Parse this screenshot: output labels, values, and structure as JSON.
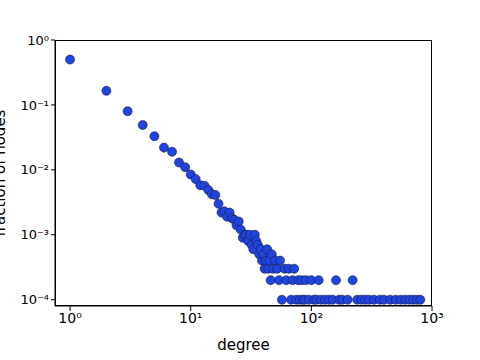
{
  "chart_data": {
    "type": "scatter",
    "x_label": "degree",
    "y_label": "fraction of nodes",
    "log": true,
    "grid": false,
    "color": "#1f45e0",
    "marker": "circle",
    "xlim": [
      0.75,
      1000
    ],
    "ylim": [
      8e-05,
      1
    ],
    "xticks": [
      {
        "value": 1,
        "label": "10⁰"
      },
      {
        "value": 10,
        "label": "10¹"
      },
      {
        "value": 100,
        "label": "10²"
      },
      {
        "value": 1000,
        "label": "10³"
      }
    ],
    "yticks": [
      {
        "value": 0.0001,
        "label": "10⁻⁴"
      },
      {
        "value": 0.001,
        "label": "10⁻³"
      },
      {
        "value": 0.01,
        "label": "10⁻²"
      },
      {
        "value": 0.1,
        "label": "10⁻¹"
      },
      {
        "value": 1,
        "label": "10⁰"
      }
    ],
    "x": [
      1,
      2,
      3,
      4,
      5,
      6,
      7,
      8,
      9,
      10,
      11,
      12,
      13,
      14,
      15,
      16,
      17,
      18,
      19,
      20,
      21,
      22,
      23,
      24,
      25,
      26,
      27,
      28,
      29,
      30,
      31,
      32,
      33,
      34,
      35,
      36,
      37,
      38,
      39,
      40,
      41,
      42,
      43,
      44,
      45,
      46,
      47,
      48,
      50,
      52,
      54,
      55,
      57,
      60,
      62,
      65,
      68,
      70,
      72,
      75,
      78,
      80,
      83,
      85,
      88,
      90,
      95,
      100,
      105,
      110,
      115,
      120,
      130,
      140,
      150,
      160,
      170,
      180,
      200,
      220,
      240,
      260,
      280,
      300,
      330,
      370,
      400,
      450,
      500,
      550,
      600,
      650,
      700,
      750,
      800
    ],
    "values": [
      0.5,
      0.165,
      0.08,
      0.049,
      0.033,
      0.022,
      0.019,
      0.013,
      0.011,
      0.0085,
      0.0072,
      0.0058,
      0.0057,
      0.0049,
      0.0042,
      0.0041,
      0.003,
      0.0022,
      0.0023,
      0.0019,
      0.0022,
      0.0018,
      0.0017,
      0.0014,
      0.0016,
      0.0012,
      0.0009,
      0.001,
      0.001,
      0.0008,
      0.001,
      0.0007,
      0.0006,
      0.001,
      0.0008,
      0.0007,
      0.0005,
      0.0006,
      0.0004,
      0.0005,
      0.0003,
      0.0004,
      0.0006,
      0.0003,
      0.0004,
      0.0002,
      0.0005,
      0.0003,
      0.0004,
      0.0003,
      0.0002,
      0.0004,
      0.0001,
      0.0003,
      0.0002,
      0.0003,
      0.0001,
      0.0002,
      0.0003,
      0.0001,
      0.0002,
      0.0001,
      0.0002,
      0.0001,
      0.0001,
      0.0002,
      0.0001,
      0.0002,
      0.0001,
      0.0001,
      0.0002,
      0.0001,
      0.0001,
      0.0001,
      0.0001,
      0.0002,
      0.0001,
      0.0001,
      0.0001,
      0.0002,
      0.0001,
      0.0001,
      0.0001,
      0.0001,
      0.0001,
      0.0001,
      0.0001,
      0.0001,
      0.0001,
      0.0001,
      0.0001,
      0.0001,
      0.0001,
      0.0001,
      0.0001
    ]
  }
}
